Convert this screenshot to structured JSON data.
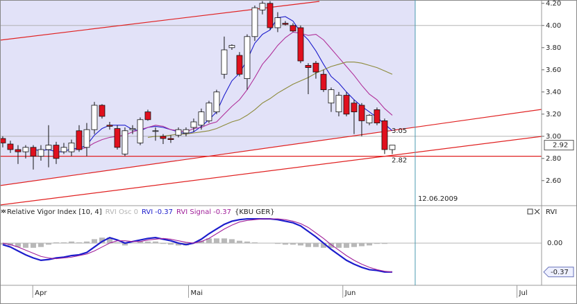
{
  "chart_data": [
    {
      "type": "candlestick",
      "categories": [
        null,
        null,
        null,
        null,
        null,
        null,
        null,
        null,
        null,
        null,
        null,
        null,
        null,
        null,
        null,
        null,
        null,
        null,
        null,
        null,
        null,
        null,
        null,
        null,
        null,
        null,
        null,
        null,
        null,
        null,
        null,
        null,
        null,
        null,
        null,
        null,
        null,
        null,
        null,
        null,
        null,
        null,
        null,
        null,
        null,
        null,
        null,
        null,
        null,
        null,
        null,
        null
      ],
      "open": [
        2.98,
        2.93,
        2.88,
        2.86,
        2.9,
        2.82,
        2.88,
        2.92,
        2.86,
        2.86,
        3.05,
        2.9,
        3.06,
        3.28,
        3.1,
        3.07,
        2.84,
        3.06,
        2.94,
        3.22,
        3.05,
        3.0,
        2.98,
        3.01,
        3.03,
        3.08,
        3.1,
        3.14,
        3.22,
        3.56,
        3.8,
        3.73,
        3.52,
        3.9,
        4.14,
        4.2,
        3.98,
        4.02,
        4.0,
        3.98,
        3.64,
        3.66,
        3.56,
        3.3,
        3.22,
        3.37,
        3.3,
        3.28,
        3.12,
        3.24,
        3.14,
        2.88
      ],
      "high": [
        3.0,
        2.96,
        2.92,
        2.92,
        2.92,
        2.92,
        3.1,
        2.95,
        2.94,
        2.97,
        3.1,
        3.12,
        3.31,
        3.29,
        3.13,
        3.1,
        3.08,
        3.1,
        3.17,
        3.24,
        3.08,
        3.02,
        3.01,
        3.08,
        3.08,
        3.16,
        3.25,
        3.32,
        3.42,
        3.9,
        3.83,
        3.76,
        3.92,
        4.18,
        4.22,
        4.22,
        4.12,
        4.04,
        4.02,
        4.0,
        3.66,
        3.68,
        3.6,
        3.44,
        3.4,
        3.4,
        3.33,
        3.3,
        3.2,
        3.26,
        3.16,
        2.92
      ],
      "low": [
        2.9,
        2.85,
        2.75,
        2.8,
        2.7,
        2.78,
        2.72,
        2.75,
        2.84,
        2.82,
        2.86,
        2.82,
        3.02,
        3.16,
        3.06,
        2.88,
        2.82,
        3.02,
        2.92,
        3.14,
        2.96,
        2.93,
        2.94,
        2.99,
        3.0,
        3.04,
        3.06,
        3.12,
        3.2,
        3.52,
        3.78,
        3.54,
        3.42,
        3.86,
        4.1,
        3.96,
        3.94,
        4.0,
        3.94,
        3.66,
        3.38,
        3.52,
        3.4,
        3.22,
        3.18,
        3.18,
        3.02,
        3.0,
        3.1,
        3.1,
        2.84,
        2.84
      ],
      "close": [
        2.94,
        2.88,
        2.86,
        2.9,
        2.82,
        2.88,
        2.92,
        2.8,
        2.9,
        2.94,
        2.88,
        3.06,
        3.28,
        3.18,
        3.09,
        2.9,
        3.05,
        3.07,
        3.15,
        3.15,
        3.05,
        2.98,
        2.97,
        3.06,
        3.06,
        3.13,
        3.22,
        3.3,
        3.4,
        3.78,
        3.82,
        3.56,
        3.9,
        4.16,
        4.2,
        3.98,
        4.07,
        4.01,
        3.95,
        3.68,
        3.62,
        3.58,
        3.42,
        3.42,
        3.37,
        3.2,
        3.22,
        3.14,
        3.19,
        3.12,
        2.88,
        2.92
      ],
      "up_color": "#ffffff",
      "down_color": "#e0101e",
      "series": [
        {
          "color": "#1c1ccc",
          "values": [
            null,
            null,
            null,
            null,
            2.88,
            2.87,
            2.88,
            2.86,
            2.86,
            2.89,
            2.89,
            2.92,
            3.01,
            3.07,
            3.1,
            3.1,
            3.1,
            3.06,
            3.05,
            3.08,
            3.09,
            3.08,
            3.06,
            3.04,
            3.02,
            3.04,
            3.09,
            3.15,
            3.22,
            3.37,
            3.5,
            3.57,
            3.69,
            3.84,
            3.92,
            3.96,
            4.07,
            4.08,
            4.04,
            3.94,
            3.87,
            3.77,
            3.65,
            3.54,
            3.48,
            3.4,
            3.33,
            3.27,
            3.22,
            3.17,
            3.11,
            3.05
          ]
        },
        {
          "color": "#b0309a",
          "values": [
            null,
            null,
            null,
            null,
            null,
            null,
            null,
            null,
            null,
            2.88,
            2.88,
            2.9,
            2.94,
            2.97,
            2.99,
            3.0,
            3.01,
            3.04,
            3.06,
            3.08,
            3.1,
            3.09,
            3.06,
            3.05,
            3.04,
            3.07,
            3.08,
            3.11,
            3.13,
            3.2,
            3.27,
            3.33,
            3.42,
            3.53,
            3.65,
            3.73,
            3.82,
            3.89,
            3.94,
            3.93,
            3.91,
            3.92,
            3.87,
            3.79,
            3.71,
            3.63,
            3.55,
            3.46,
            3.38,
            3.33,
            3.25,
            3.19
          ]
        },
        {
          "color": "#8c8a3a",
          "values": [
            null,
            null,
            null,
            null,
            null,
            null,
            null,
            null,
            null,
            null,
            null,
            null,
            null,
            null,
            null,
            null,
            null,
            null,
            null,
            2.99,
            3.0,
            3.0,
            3.01,
            3.02,
            3.02,
            3.03,
            3.04,
            3.05,
            3.07,
            3.1,
            3.13,
            3.15,
            3.19,
            3.24,
            3.3,
            3.34,
            3.39,
            3.43,
            3.47,
            3.5,
            3.53,
            3.57,
            3.6,
            3.63,
            3.65,
            3.67,
            3.67,
            3.66,
            3.64,
            3.62,
            3.59,
            3.56
          ]
        }
      ],
      "xlim": [
        -0.36,
        70.55
      ],
      "xticks": [
        {
          "value": 4.2,
          "label": "Apr"
        },
        {
          "value": 24.6,
          "label": "Mai"
        },
        {
          "value": 44.8,
          "label": "Jun"
        },
        {
          "value": 67.6,
          "label": "Jul"
        }
      ],
      "ylim": [
        2.38,
        4.23
      ],
      "yticks": [
        {
          "value": 2.6,
          "label": "2.60"
        },
        {
          "value": 2.8,
          "label": "2.80"
        },
        {
          "value": 3.0,
          "label": "3.00"
        },
        {
          "value": 3.2,
          "label": "3.20"
        },
        {
          "value": 3.4,
          "label": "3.40"
        },
        {
          "value": 3.6,
          "label": "3.60"
        },
        {
          "value": 3.8,
          "label": "3.80"
        },
        {
          "value": 4.0,
          "label": "4.00"
        },
        {
          "value": 4.2,
          "label": "4.20"
        }
      ],
      "grid_values": [
        3.0,
        4.0
      ],
      "hline": 2.82,
      "annotations": [
        3.05,
        2.82
      ],
      "date_marker": {
        "value": 54.0,
        "label": "12.06.2009"
      }
    },
    {
      "type": "line",
      "title": "Relative Vigor Index [10, 4]",
      "subtitle": "{KBU GER}",
      "axis_label": "RVI",
      "series": [
        {
          "name": "RVI Osc",
          "style": "bar",
          "color": "#b8b8b8",
          "values": [
            -0.02,
            -0.03,
            -0.05,
            -0.06,
            -0.06,
            -0.05,
            -0.02,
            0.01,
            0.01,
            0.02,
            0.01,
            0.02,
            0.05,
            0.07,
            0.07,
            0.01,
            -0.03,
            0.0,
            0.02,
            0.02,
            0.02,
            -0.01,
            -0.02,
            -0.03,
            -0.03,
            0.0,
            0.03,
            0.06,
            0.06,
            0.06,
            0.05,
            0.03,
            0.02,
            0.01,
            0.0,
            0.0,
            -0.01,
            -0.02,
            -0.02,
            -0.03,
            -0.05,
            -0.05,
            -0.06,
            -0.06,
            -0.06,
            -0.06,
            -0.05,
            -0.04,
            -0.03,
            -0.01,
            -0.01,
            0
          ]
        },
        {
          "name": "RVI",
          "style": "line",
          "color": "#1c1ccc",
          "values": [
            -0.02,
            -0.05,
            -0.1,
            -0.15,
            -0.19,
            -0.22,
            -0.21,
            -0.19,
            -0.18,
            -0.16,
            -0.15,
            -0.12,
            -0.05,
            0.02,
            0.07,
            0.04,
            0.0,
            0.02,
            0.04,
            0.06,
            0.07,
            0.05,
            0.03,
            0.0,
            -0.02,
            0.0,
            0.05,
            0.12,
            0.18,
            0.24,
            0.28,
            0.3,
            0.31,
            0.31,
            0.31,
            0.31,
            0.3,
            0.28,
            0.26,
            0.22,
            0.15,
            0.08,
            0.0,
            -0.08,
            -0.15,
            -0.22,
            -0.27,
            -0.31,
            -0.34,
            -0.35,
            -0.37,
            -0.37
          ]
        },
        {
          "name": "RVI Signal",
          "style": "line",
          "color": "#a0209a",
          "values": [
            0.0,
            -0.02,
            -0.05,
            -0.09,
            -0.13,
            -0.17,
            -0.19,
            -0.2,
            -0.19,
            -0.18,
            -0.16,
            -0.14,
            -0.1,
            -0.05,
            0.0,
            0.03,
            0.03,
            0.02,
            0.02,
            0.04,
            0.05,
            0.06,
            0.05,
            0.03,
            0.01,
            0.0,
            0.02,
            0.06,
            0.12,
            0.18,
            0.23,
            0.27,
            0.29,
            0.3,
            0.31,
            0.31,
            0.31,
            0.3,
            0.28,
            0.25,
            0.2,
            0.13,
            0.06,
            -0.02,
            -0.09,
            -0.16,
            -0.22,
            -0.27,
            -0.31,
            -0.34,
            -0.36,
            -0.37
          ]
        }
      ],
      "ylim": [
        -0.54,
        0.47
      ],
      "yticks": [
        {
          "value": 0,
          "label": "0.00"
        }
      ]
    }
  ]
}
